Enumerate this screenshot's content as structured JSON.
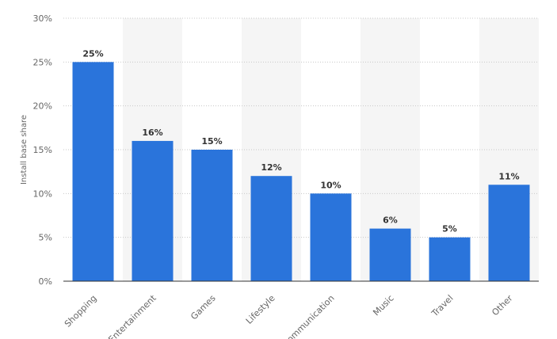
{
  "chart_data": {
    "type": "bar",
    "categories": [
      "Shopping",
      "Entertainment",
      "Games",
      "Lifestyle",
      "Communication",
      "Music",
      "Travel",
      "Other"
    ],
    "values": [
      25,
      16,
      15,
      12,
      10,
      6,
      5,
      11
    ],
    "value_labels": [
      "25%",
      "16%",
      "15%",
      "12%",
      "10%",
      "6%",
      "5%",
      "11%"
    ],
    "title": "",
    "xlabel": "",
    "ylabel": "Install base share",
    "ylim": [
      0,
      30
    ],
    "yticks": [
      0,
      5,
      10,
      15,
      20,
      25,
      30
    ],
    "ytick_labels": [
      "0%",
      "5%",
      "10%",
      "15%",
      "20%",
      "25%",
      "30%"
    ],
    "grid": true,
    "bar_color": "#2a74db",
    "band_color": "#f5f5f5"
  }
}
